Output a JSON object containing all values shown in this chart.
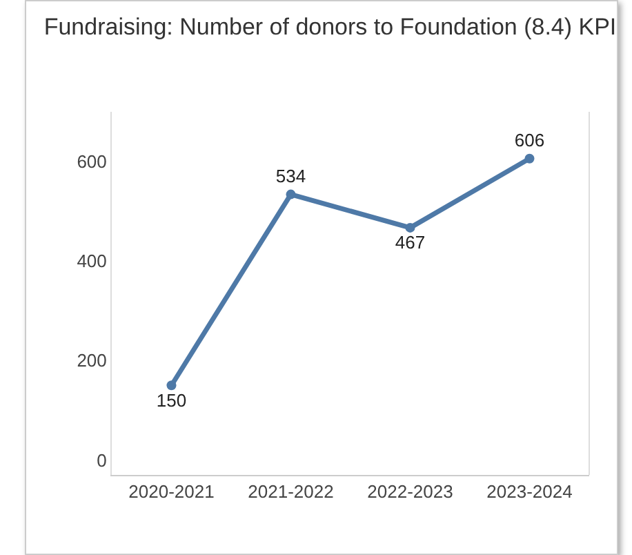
{
  "chart_data": {
    "type": "line",
    "title": "Fundraising: Number of donors to Foundation (8.4) KPI",
    "categories": [
      "2020-2021",
      "2021-2022",
      "2022-2023",
      "2023-2024"
    ],
    "series": [
      {
        "color": "#4e79a7",
        "values": [
          150,
          534,
          467,
          606
        ]
      }
    ],
    "ylim": [
      -30,
      700
    ],
    "yticks": [
      0,
      200,
      400,
      600
    ],
    "data_labels": true,
    "marker": "circle",
    "line_style": "solid",
    "grid": false,
    "legend": false
  }
}
